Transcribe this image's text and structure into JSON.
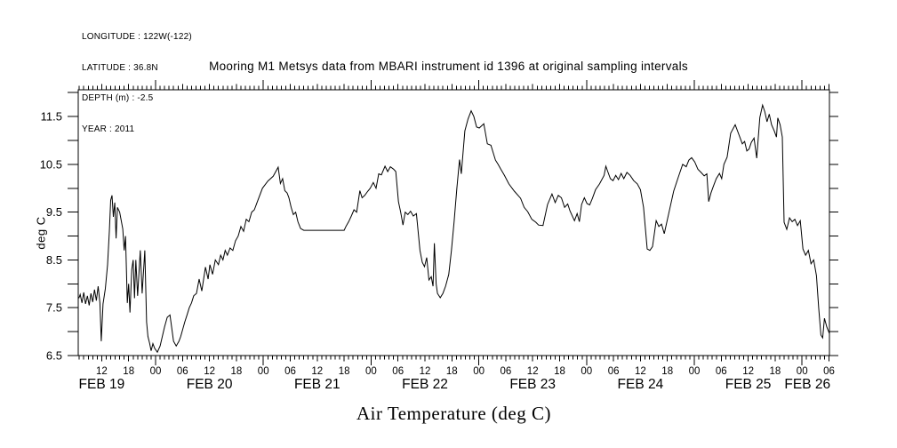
{
  "meta_block": {
    "lines": [
      "LONGITUDE : 122W(-122)",
      "LATITUDE : 36.8N",
      "DEPTH (m) : -2.5",
      "YEAR : 2011"
    ]
  },
  "title": "Mooring M1 Metsys data from MBARI instrument id 1396 at original sampling intervals",
  "y_axis_title": "deg C",
  "x_axis_title": "Air Temperature (deg C)",
  "chart_data": {
    "type": "line",
    "title": "Mooring M1 Metsys data from MBARI instrument id 1396 at original sampling intervals",
    "xlabel": "Air Temperature (deg C)",
    "ylabel": "deg C",
    "line_color": "#000000",
    "grid": false,
    "legend": "none",
    "x_unit": "hours since 2011 FEB 19 00:00",
    "xlim_hours": [
      6.77,
      174.1
    ],
    "ylim": [
      6.5,
      12.06
    ],
    "y_major_ticks": [
      {
        "v": 6.5,
        "label": "6.5"
      },
      {
        "v": 7.5,
        "label": "7.5"
      },
      {
        "v": 8.5,
        "label": "8.5"
      },
      {
        "v": 9.5,
        "label": "9.5"
      },
      {
        "v": 10.5,
        "label": "10.5"
      },
      {
        "v": 11.5,
        "label": "11.5"
      }
    ],
    "y_minor_tick_step": 0.5,
    "x_minor_tick_step_hours": 1,
    "x_hour_ticks": [
      {
        "t": 12,
        "label": "12"
      },
      {
        "t": 18,
        "label": "18"
      },
      {
        "t": 24,
        "label": "00"
      },
      {
        "t": 30,
        "label": "06"
      },
      {
        "t": 36,
        "label": "12"
      },
      {
        "t": 42,
        "label": "18"
      },
      {
        "t": 48,
        "label": "00"
      },
      {
        "t": 54,
        "label": "06"
      },
      {
        "t": 60,
        "label": "12"
      },
      {
        "t": 66,
        "label": "18"
      },
      {
        "t": 72,
        "label": "00"
      },
      {
        "t": 78,
        "label": "06"
      },
      {
        "t": 84,
        "label": "12"
      },
      {
        "t": 90,
        "label": "18"
      },
      {
        "t": 96,
        "label": "00"
      },
      {
        "t": 102,
        "label": "06"
      },
      {
        "t": 108,
        "label": "12"
      },
      {
        "t": 114,
        "label": "18"
      },
      {
        "t": 120,
        "label": "00"
      },
      {
        "t": 126,
        "label": "06"
      },
      {
        "t": 132,
        "label": "12"
      },
      {
        "t": 138,
        "label": "18"
      },
      {
        "t": 144,
        "label": "00"
      },
      {
        "t": 150,
        "label": "06"
      },
      {
        "t": 156,
        "label": "12"
      },
      {
        "t": 162,
        "label": "18"
      },
      {
        "t": 168,
        "label": "00"
      },
      {
        "t": 174,
        "label": "06"
      }
    ],
    "x_day_labels": [
      {
        "t": 12,
        "label": "FEB 19"
      },
      {
        "t": 36,
        "label": "FEB 20"
      },
      {
        "t": 60,
        "label": "FEB 21"
      },
      {
        "t": 84,
        "label": "FEB 22"
      },
      {
        "t": 108,
        "label": "FEB 23"
      },
      {
        "t": 132,
        "label": "FEB 24"
      },
      {
        "t": 156,
        "label": "FEB 25"
      },
      {
        "t": 169.2,
        "label": "FEB 26"
      }
    ],
    "series": [
      {
        "name": "air_temperature_deg_c",
        "points": [
          [
            6.9,
            7.7
          ],
          [
            7.2,
            7.78
          ],
          [
            7.6,
            7.6
          ],
          [
            8,
            7.82
          ],
          [
            8.4,
            7.58
          ],
          [
            8.8,
            7.75
          ],
          [
            9.2,
            7.55
          ],
          [
            9.6,
            7.8
          ],
          [
            10,
            7.62
          ],
          [
            10.4,
            7.88
          ],
          [
            10.8,
            7.65
          ],
          [
            11.2,
            7.95
          ],
          [
            11.6,
            7.6
          ],
          [
            11.9,
            6.8
          ],
          [
            12.3,
            7.58
          ],
          [
            12.8,
            7.9
          ],
          [
            13.3,
            8.4
          ],
          [
            13.7,
            9.1
          ],
          [
            14,
            9.75
          ],
          [
            14.3,
            9.85
          ],
          [
            14.6,
            9.4
          ],
          [
            14.9,
            9.7
          ],
          [
            15.2,
            8.95
          ],
          [
            15.5,
            9.6
          ],
          [
            16,
            9.5
          ],
          [
            16.7,
            9.15
          ],
          [
            17,
            8.7
          ],
          [
            17.3,
            9
          ],
          [
            17.7,
            7.6
          ],
          [
            18,
            8
          ],
          [
            18.3,
            7.4
          ],
          [
            18.7,
            8.3
          ],
          [
            19,
            8.5
          ],
          [
            19.3,
            7.7
          ],
          [
            19.6,
            8.5
          ],
          [
            20,
            7.75
          ],
          [
            20.6,
            8.7
          ],
          [
            21,
            7.8
          ],
          [
            21.6,
            8.7
          ],
          [
            22,
            7.2
          ],
          [
            22.3,
            6.9
          ],
          [
            22.7,
            6.75
          ],
          [
            23,
            6.6
          ],
          [
            23.4,
            6.75
          ],
          [
            23.8,
            6.65
          ],
          [
            24.4,
            6.57
          ],
          [
            25,
            6.7
          ],
          [
            25.5,
            6.9
          ],
          [
            26,
            7.1
          ],
          [
            26.6,
            7.3
          ],
          [
            27.2,
            7.35
          ],
          [
            28,
            6.8
          ],
          [
            28.6,
            6.7
          ],
          [
            29.2,
            6.8
          ],
          [
            29.6,
            6.9
          ],
          [
            30.5,
            7.2
          ],
          [
            31,
            7.35
          ],
          [
            31.5,
            7.5
          ],
          [
            32,
            7.6
          ],
          [
            32.5,
            7.75
          ],
          [
            33.1,
            7.8
          ],
          [
            33.7,
            8.1
          ],
          [
            34.3,
            7.85
          ],
          [
            35.1,
            8.35
          ],
          [
            35.7,
            8.1
          ],
          [
            36.1,
            8.4
          ],
          [
            36.7,
            8.2
          ],
          [
            37.3,
            8.5
          ],
          [
            38,
            8.4
          ],
          [
            38.5,
            8.6
          ],
          [
            39,
            8.5
          ],
          [
            39.5,
            8.7
          ],
          [
            40,
            8.6
          ],
          [
            40.6,
            8.75
          ],
          [
            41.2,
            8.7
          ],
          [
            41.8,
            8.9
          ],
          [
            42.4,
            9
          ],
          [
            43,
            9.2
          ],
          [
            43.6,
            9.1
          ],
          [
            44.2,
            9.35
          ],
          [
            44.8,
            9.3
          ],
          [
            45.4,
            9.5
          ],
          [
            46,
            9.55
          ],
          [
            46.6,
            9.7
          ],
          [
            47.8,
            10
          ],
          [
            49,
            10.15
          ],
          [
            50.2,
            10.25
          ],
          [
            51.3,
            10.44
          ],
          [
            51.8,
            10.1
          ],
          [
            52.3,
            10.2
          ],
          [
            52.8,
            9.95
          ],
          [
            53.3,
            9.9
          ],
          [
            53.7,
            9.8
          ],
          [
            54.2,
            9.6
          ],
          [
            54.7,
            9.45
          ],
          [
            55.2,
            9.5
          ],
          [
            55.7,
            9.3
          ],
          [
            56.3,
            9.16
          ],
          [
            57,
            9.12
          ],
          [
            60,
            9.12
          ],
          [
            63,
            9.12
          ],
          [
            66,
            9.12
          ],
          [
            66.4,
            9.2
          ],
          [
            67,
            9.3
          ],
          [
            67.6,
            9.42
          ],
          [
            68.2,
            9.55
          ],
          [
            68.8,
            9.5
          ],
          [
            69.5,
            9.95
          ],
          [
            70,
            9.8
          ],
          [
            70.6,
            9.85
          ],
          [
            71.2,
            9.93
          ],
          [
            71.8,
            10
          ],
          [
            72.5,
            10.12
          ],
          [
            73.1,
            10
          ],
          [
            73.7,
            10.3
          ],
          [
            74.3,
            10.28
          ],
          [
            75.1,
            10.46
          ],
          [
            75.7,
            10.35
          ],
          [
            76.3,
            10.45
          ],
          [
            77,
            10.4
          ],
          [
            77.5,
            10.35
          ],
          [
            78.1,
            9.72
          ],
          [
            78.6,
            9.5
          ],
          [
            79.1,
            9.23
          ],
          [
            79.6,
            9.5
          ],
          [
            80.2,
            9.45
          ],
          [
            80.8,
            9.52
          ],
          [
            81.4,
            9.42
          ],
          [
            82.1,
            9.47
          ],
          [
            82.9,
            8.7
          ],
          [
            83.4,
            8.45
          ],
          [
            83.9,
            8.36
          ],
          [
            84.4,
            8.55
          ],
          [
            84.9,
            8.08
          ],
          [
            85.4,
            8.15
          ],
          [
            85.8,
            7.95
          ],
          [
            86.1,
            8.85
          ],
          [
            86.5,
            8
          ],
          [
            86.8,
            7.8
          ],
          [
            87.4,
            7.71
          ],
          [
            88,
            7.8
          ],
          [
            88.6,
            7.95
          ],
          [
            89.3,
            8.2
          ],
          [
            89.9,
            8.7
          ],
          [
            90.5,
            9.3
          ],
          [
            91.1,
            10
          ],
          [
            91.7,
            10.6
          ],
          [
            92.1,
            10.3
          ],
          [
            92.9,
            11.2
          ],
          [
            93.6,
            11.45
          ],
          [
            94.3,
            11.62
          ],
          [
            94.9,
            11.5
          ],
          [
            95.5,
            11.28
          ],
          [
            96.1,
            11.26
          ],
          [
            97.1,
            11.35
          ],
          [
            97.9,
            10.93
          ],
          [
            98.7,
            10.9
          ],
          [
            99.7,
            10.59
          ],
          [
            100.3,
            10.5
          ],
          [
            100.9,
            10.4
          ],
          [
            101.7,
            10.27
          ],
          [
            102.7,
            10.09
          ],
          [
            103.9,
            9.94
          ],
          [
            105.3,
            9.79
          ],
          [
            106.1,
            9.6
          ],
          [
            106.9,
            9.51
          ],
          [
            107.8,
            9.35
          ],
          [
            108.7,
            9.29
          ],
          [
            109.3,
            9.23
          ],
          [
            110.3,
            9.22
          ],
          [
            111.3,
            9.66
          ],
          [
            112.3,
            9.88
          ],
          [
            113,
            9.7
          ],
          [
            113.7,
            9.85
          ],
          [
            114.4,
            9.8
          ],
          [
            115.1,
            9.6
          ],
          [
            115.8,
            9.67
          ],
          [
            116.3,
            9.53
          ],
          [
            117.3,
            9.32
          ],
          [
            117.9,
            9.47
          ],
          [
            118.4,
            9.3
          ],
          [
            118.9,
            9.66
          ],
          [
            119.5,
            9.8
          ],
          [
            120.1,
            9.68
          ],
          [
            120.7,
            9.65
          ],
          [
            121.3,
            9.79
          ],
          [
            122,
            9.97
          ],
          [
            122.9,
            10.09
          ],
          [
            123.9,
            10.27
          ],
          [
            124.3,
            10.46
          ],
          [
            124.8,
            10.33
          ],
          [
            125.3,
            10.2
          ],
          [
            125.9,
            10.16
          ],
          [
            126.5,
            10.27
          ],
          [
            127.1,
            10.18
          ],
          [
            127.7,
            10.31
          ],
          [
            128.3,
            10.2
          ],
          [
            129,
            10.33
          ],
          [
            129.7,
            10.27
          ],
          [
            130.5,
            10.16
          ],
          [
            131.3,
            10.09
          ],
          [
            132,
            9.97
          ],
          [
            132.7,
            9.6
          ],
          [
            133.5,
            8.73
          ],
          [
            134.1,
            8.7
          ],
          [
            134.7,
            8.78
          ],
          [
            135.5,
            9.32
          ],
          [
            136.1,
            9.2
          ],
          [
            136.7,
            9.25
          ],
          [
            137.3,
            9.05
          ],
          [
            138.3,
            9.47
          ],
          [
            139.4,
            9.94
          ],
          [
            140.4,
            10.22
          ],
          [
            141.4,
            10.5
          ],
          [
            142.2,
            10.45
          ],
          [
            142.8,
            10.59
          ],
          [
            143.4,
            10.64
          ],
          [
            144.1,
            10.55
          ],
          [
            144.8,
            10.4
          ],
          [
            145.5,
            10.33
          ],
          [
            146.2,
            10.26
          ],
          [
            146.8,
            10.3
          ],
          [
            147.2,
            9.72
          ],
          [
            147.7,
            9.9
          ],
          [
            148.2,
            10.03
          ],
          [
            148.9,
            10.2
          ],
          [
            149.6,
            10.31
          ],
          [
            150.1,
            10.2
          ],
          [
            150.6,
            10.5
          ],
          [
            151.3,
            10.65
          ],
          [
            152.1,
            11.15
          ],
          [
            153.1,
            11.33
          ],
          [
            154.1,
            11.08
          ],
          [
            154.7,
            10.93
          ],
          [
            155.2,
            10.98
          ],
          [
            155.7,
            10.78
          ],
          [
            156.2,
            10.82
          ],
          [
            156.7,
            10.96
          ],
          [
            157.3,
            11.05
          ],
          [
            157.9,
            10.63
          ],
          [
            158.6,
            11.48
          ],
          [
            159.2,
            11.74
          ],
          [
            159.7,
            11.6
          ],
          [
            160.2,
            11.39
          ],
          [
            160.7,
            11.55
          ],
          [
            161.2,
            11.33
          ],
          [
            161.8,
            11.2
          ],
          [
            162.3,
            11.07
          ],
          [
            162.6,
            11.47
          ],
          [
            163.1,
            11.33
          ],
          [
            163.6,
            11.07
          ],
          [
            164,
            9.29
          ],
          [
            164.6,
            9.14
          ],
          [
            165.2,
            9.38
          ],
          [
            165.8,
            9.3
          ],
          [
            166.4,
            9.35
          ],
          [
            167,
            9.22
          ],
          [
            167.6,
            9.32
          ],
          [
            168.2,
            8.73
          ],
          [
            168.8,
            8.6
          ],
          [
            169.4,
            8.7
          ],
          [
            170,
            8.42
          ],
          [
            170.6,
            8.5
          ],
          [
            171.2,
            8.17
          ],
          [
            171.7,
            7.5
          ],
          [
            172.2,
            6.93
          ],
          [
            172.6,
            6.87
          ],
          [
            173,
            7.28
          ],
          [
            173.5,
            7.1
          ],
          [
            174.1,
            6.96
          ]
        ]
      }
    ]
  }
}
